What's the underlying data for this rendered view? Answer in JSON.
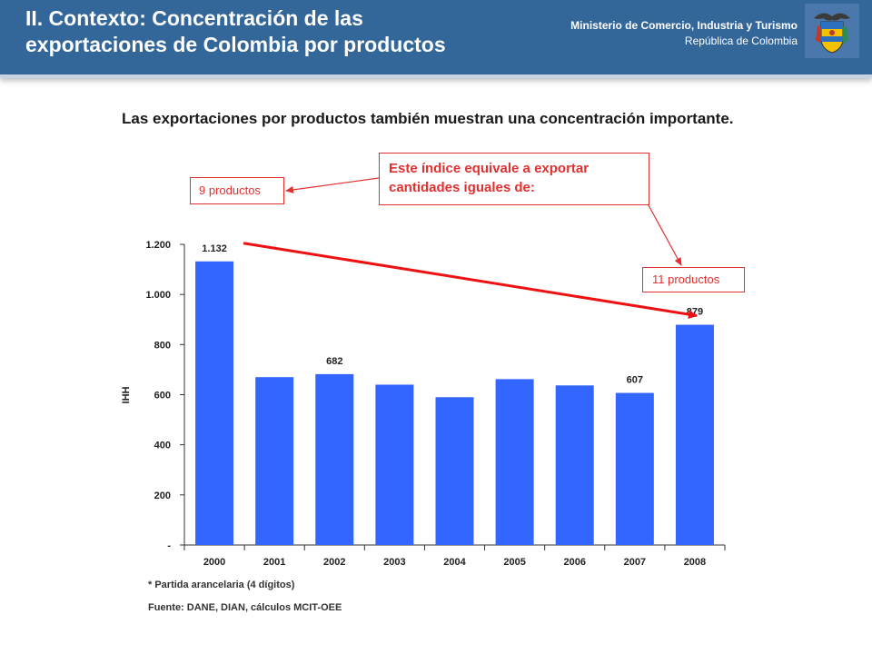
{
  "header": {
    "title": "II. Contexto: Concentración de las\nexportaciones de Colombia por productos",
    "ministry": "Ministerio de Comercio, Industria y Turismo",
    "country": "República de Colombia"
  },
  "subtitle": "Las exportaciones por productos también muestran una concentración importante.",
  "callouts": {
    "main": "Este índice equivale a exportar cantidades iguales de:",
    "left": "9 productos",
    "right": "11 productos"
  },
  "chart_data": {
    "type": "bar",
    "categories": [
      "2000",
      "2001",
      "2002",
      "2003",
      "2004",
      "2005",
      "2006",
      "2007",
      "2008"
    ],
    "values": [
      1132,
      670,
      682,
      640,
      590,
      662,
      637,
      607,
      879
    ],
    "data_labels": [
      "1.132",
      "",
      "682",
      "",
      "",
      "",
      "",
      "607",
      "879"
    ],
    "ylabel": "IHH",
    "ylim": [
      0,
      1200
    ],
    "yticks": [
      0,
      200,
      400,
      600,
      800,
      1000,
      1200
    ],
    "ytick_labels": [
      "-",
      "200",
      "400",
      "600",
      "800",
      "1.000",
      "1.200"
    ],
    "bar_color": "#3366ff",
    "trend_color": "#ee1111",
    "grid": false
  },
  "footnotes": {
    "note": "* Partida arancelaria (4 dígitos)",
    "source": "Fuente: DANE, DIAN, cálculos MCIT-OEE"
  },
  "colors": {
    "header_bg": "#336699",
    "accent": "#e03030"
  }
}
